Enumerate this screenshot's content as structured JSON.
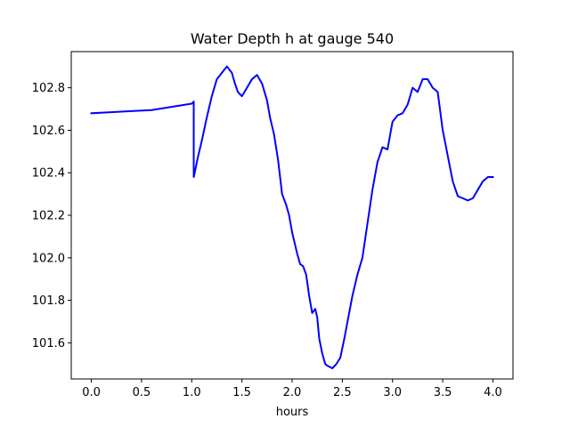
{
  "chart_data": {
    "type": "line",
    "title": "Water Depth h at gauge 540",
    "xlabel": "hours",
    "ylabel": "",
    "xlim": [
      -0.2,
      4.2
    ],
    "ylim": [
      101.43,
      102.97
    ],
    "xticks": [
      0.0,
      0.5,
      1.0,
      1.5,
      2.0,
      2.5,
      3.0,
      3.5,
      4.0
    ],
    "xtick_labels": [
      "0.0",
      "0.5",
      "1.0",
      "1.5",
      "2.0",
      "2.5",
      "3.0",
      "3.5",
      "4.0"
    ],
    "yticks": [
      101.6,
      101.8,
      102.0,
      102.2,
      102.4,
      102.6,
      102.8
    ],
    "ytick_labels": [
      "101.6",
      "101.8",
      "102.0",
      "102.2",
      "102.4",
      "102.6",
      "102.8"
    ],
    "grid": false,
    "series": [
      {
        "color": "#0000ff",
        "x": [
          0.0,
          0.2,
          0.4,
          0.6,
          0.8,
          1.0,
          1.02,
          1.02,
          1.06,
          1.1,
          1.15,
          1.2,
          1.25,
          1.3,
          1.35,
          1.4,
          1.43,
          1.46,
          1.5,
          1.55,
          1.6,
          1.65,
          1.7,
          1.75,
          1.78,
          1.82,
          1.86,
          1.9,
          1.94,
          1.97,
          2.0,
          2.03,
          2.05,
          2.08,
          2.11,
          2.14,
          2.17,
          2.2,
          2.23,
          2.25,
          2.27,
          2.3,
          2.33,
          2.36,
          2.4,
          2.44,
          2.48,
          2.52,
          2.56,
          2.6,
          2.65,
          2.7,
          2.75,
          2.8,
          2.85,
          2.9,
          2.95,
          3.0,
          3.05,
          3.1,
          3.15,
          3.2,
          3.25,
          3.3,
          3.35,
          3.4,
          3.45,
          3.5,
          3.55,
          3.6,
          3.65,
          3.7,
          3.75,
          3.8,
          3.85,
          3.9,
          3.95,
          4.0
        ],
        "y": [
          102.68,
          102.685,
          102.69,
          102.695,
          102.71,
          102.725,
          102.735,
          102.38,
          102.47,
          102.55,
          102.66,
          102.76,
          102.84,
          102.87,
          102.9,
          102.87,
          102.82,
          102.78,
          102.76,
          102.8,
          102.84,
          102.86,
          102.82,
          102.74,
          102.66,
          102.58,
          102.46,
          102.3,
          102.25,
          102.2,
          102.12,
          102.06,
          102.02,
          101.97,
          101.96,
          101.92,
          101.82,
          101.74,
          101.76,
          101.72,
          101.62,
          101.55,
          101.5,
          101.49,
          101.48,
          101.5,
          101.53,
          101.62,
          101.72,
          101.82,
          101.92,
          102.0,
          102.16,
          102.32,
          102.45,
          102.52,
          102.51,
          102.64,
          102.67,
          102.68,
          102.72,
          102.8,
          102.78,
          102.84,
          102.84,
          102.8,
          102.78,
          102.6,
          102.48,
          102.36,
          102.29,
          102.28,
          102.27,
          102.28,
          102.32,
          102.36,
          102.38,
          102.38
        ]
      }
    ]
  }
}
